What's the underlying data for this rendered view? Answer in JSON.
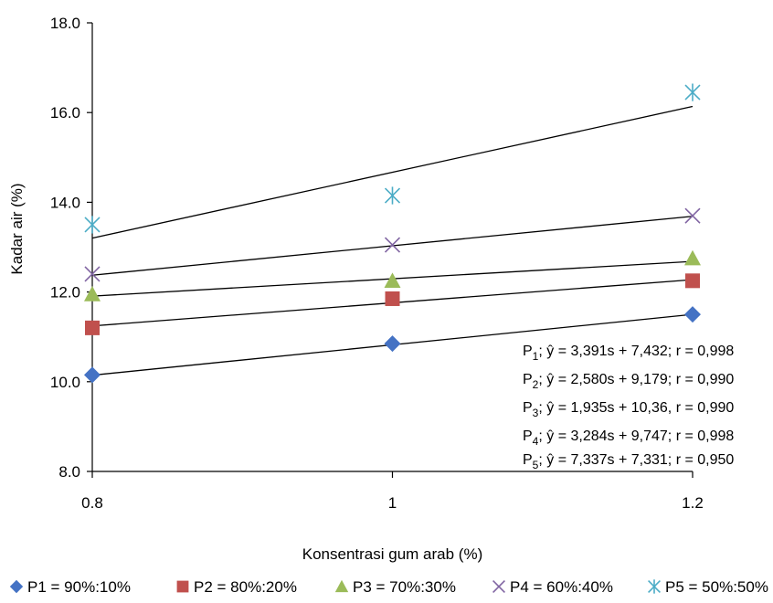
{
  "chart_data": {
    "type": "scatter",
    "title": "",
    "xlabel": "Konsentrasi gum arab (%)",
    "ylabel": "Kadar air (%)",
    "x": [
      0.8,
      1,
      1.2
    ],
    "x_tick_labels": [
      "0.8",
      "1",
      "1.2"
    ],
    "y_ticks": [
      "8.0",
      "10.0",
      "12.0",
      "14.0",
      "16.0",
      "18.0"
    ],
    "ylim": [
      8,
      18
    ],
    "xlim": [
      0.8,
      1.2
    ],
    "grid": false,
    "legend_position": "bottom",
    "series": [
      {
        "name": "P1 = 90%:10%",
        "marker": "diamond",
        "color": "#4472C4",
        "values": [
          10.15,
          10.85,
          11.5
        ],
        "trend": [
          10.145,
          11.5
        ]
      },
      {
        "name": "P2 = 80%:20%",
        "marker": "square",
        "color": "#C0504D",
        "values": [
          11.2,
          11.85,
          12.25
        ],
        "trend": [
          11.243,
          12.275
        ]
      },
      {
        "name": "P3 = 70%:30%",
        "marker": "triangle",
        "color": "#9BBB59",
        "values": [
          11.95,
          12.25,
          12.75
        ],
        "trend": [
          11.908,
          12.682
        ]
      },
      {
        "name": "P4 = 60%:40%",
        "marker": "x",
        "color": "#8064A2",
        "values": [
          12.4,
          13.05,
          13.7
        ],
        "trend": [
          12.374,
          13.688
        ]
      },
      {
        "name": "P5 = 50%:50%",
        "marker": "star",
        "color": "#4BACC6",
        "values": [
          13.5,
          14.15,
          16.45
        ],
        "trend": [
          13.201,
          16.136
        ]
      }
    ],
    "equations": [
      {
        "label": "P",
        "sub": "1",
        "text": "; ŷ = 3,391s + 7,432; r = 0,998"
      },
      {
        "label": "P",
        "sub": "2",
        "text": "; ŷ = 2,580s + 9,179; r = 0,990"
      },
      {
        "label": "P",
        "sub": "3",
        "text": "; ŷ = 1,935s + 10,36, r = 0,990"
      },
      {
        "label": "P",
        "sub": "4",
        "text": "; ŷ = 3,284s + 9,747; r = 0,998"
      },
      {
        "label": "P",
        "sub": "5",
        "text": "; ŷ = 7,337s + 7,331; r = 0,950"
      }
    ]
  }
}
